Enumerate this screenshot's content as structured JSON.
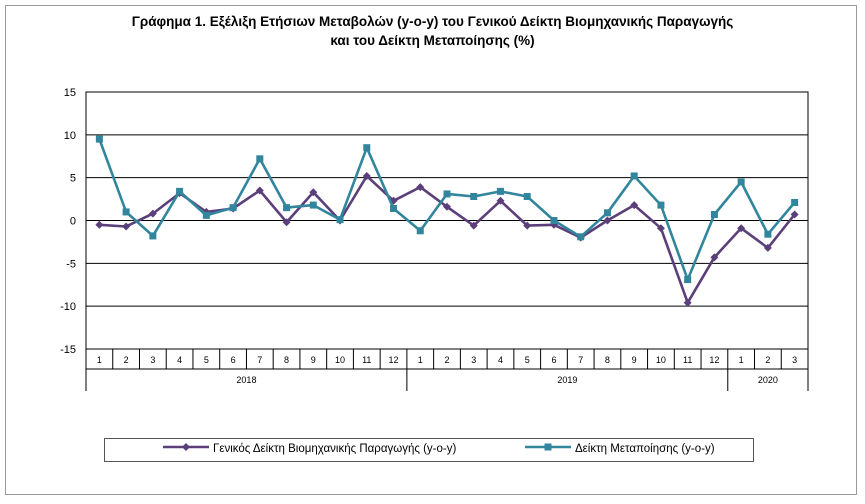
{
  "chart_data": {
    "type": "line",
    "title_line1": "Γράφημα 1. Εξέλιξη Ετήσιων Μεταβολών (y-o-y) του Γενικού Δείκτη Βιομηχανικής Παραγωγής",
    "title_line2": "και του Δείκτη Μεταποίησης (%)",
    "x": [
      "1",
      "2",
      "3",
      "4",
      "5",
      "6",
      "7",
      "8",
      "9",
      "10",
      "11",
      "12",
      "1",
      "2",
      "3",
      "4",
      "5",
      "6",
      "7",
      "8",
      "9",
      "10",
      "11",
      "12",
      "1",
      "2",
      "3"
    ],
    "year_groups": [
      {
        "label": "2018",
        "count": 12
      },
      {
        "label": "2019",
        "count": 12
      },
      {
        "label": "2020",
        "count": 3
      }
    ],
    "ylim": [
      -15,
      15
    ],
    "yticks": [
      15,
      10,
      5,
      0,
      -5,
      -10,
      -15
    ],
    "grid": true,
    "legend_position": "bottom",
    "series": [
      {
        "name": "Γενικός Δείκτη Βιομηχανικής Παραγωγής (y-o-y)",
        "color": "#5b3f7a",
        "marker": "diamond",
        "values": [
          -0.5,
          -0.7,
          0.8,
          3.2,
          1.0,
          1.4,
          3.5,
          -0.2,
          3.3,
          0.0,
          5.2,
          2.3,
          3.9,
          1.6,
          -0.6,
          2.3,
          -0.6,
          -0.5,
          -2.0,
          0.0,
          1.8,
          -0.9,
          -9.6,
          -4.3,
          -0.9,
          -3.2,
          0.7
        ]
      },
      {
        "name": "Δείκτη Μεταποίησης (y-o-y)",
        "color": "#31859c",
        "marker": "square",
        "values": [
          9.5,
          1.0,
          -1.8,
          3.4,
          0.6,
          1.5,
          7.2,
          1.5,
          1.8,
          0.1,
          8.5,
          1.4,
          -1.2,
          3.1,
          2.8,
          3.4,
          2.8,
          0.0,
          -1.9,
          0.9,
          5.2,
          1.8,
          -6.9,
          0.7,
          4.5,
          -1.6,
          2.1
        ]
      }
    ]
  }
}
